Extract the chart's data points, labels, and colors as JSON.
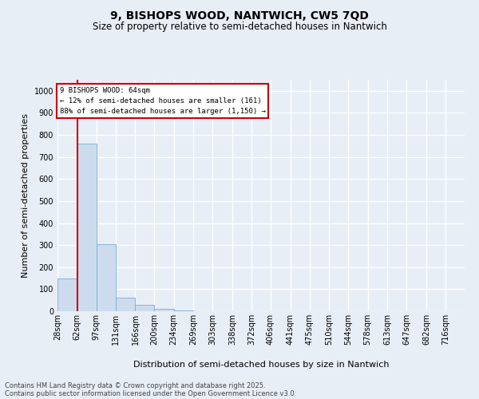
{
  "title_line1": "9, BISHOPS WOOD, NANTWICH, CW5 7QD",
  "title_line2": "Size of property relative to semi-detached houses in Nantwich",
  "xlabel": "Distribution of semi-detached houses by size in Nantwich",
  "ylabel": "Number of semi-detached properties",
  "bins": [
    "28sqm",
    "62sqm",
    "97sqm",
    "131sqm",
    "166sqm",
    "200sqm",
    "234sqm",
    "269sqm",
    "303sqm",
    "338sqm",
    "372sqm",
    "406sqm",
    "441sqm",
    "475sqm",
    "510sqm",
    "544sqm",
    "578sqm",
    "613sqm",
    "647sqm",
    "682sqm",
    "716sqm"
  ],
  "bin_edges": [
    28,
    62,
    97,
    131,
    166,
    200,
    234,
    269,
    303,
    338,
    372,
    406,
    441,
    475,
    510,
    544,
    578,
    613,
    647,
    682,
    716
  ],
  "values": [
    150,
    760,
    305,
    60,
    28,
    10,
    4,
    0,
    0,
    0,
    0,
    0,
    0,
    0,
    0,
    0,
    0,
    0,
    0,
    0
  ],
  "bar_color": "#ccdcee",
  "bar_edge_color": "#7aaed4",
  "vline_x": 64,
  "vline_color": "#cc0000",
  "ylim": [
    0,
    1050
  ],
  "yticks": [
    0,
    100,
    200,
    300,
    400,
    500,
    600,
    700,
    800,
    900,
    1000
  ],
  "annotation_line1": "9 BISHOPS WOOD: 64sqm",
  "annotation_line2": "← 12% of semi-detached houses are smaller (161)",
  "annotation_line3": "88% of semi-detached houses are larger (1,150) →",
  "annotation_box_color": "#cc0000",
  "footer_line1": "Contains HM Land Registry data © Crown copyright and database right 2025.",
  "footer_line2": "Contains public sector information licensed under the Open Government Licence v3.0.",
  "bg_color": "#e8eef5",
  "plot_bg_color": "#e8eef5",
  "grid_color": "#ffffff",
  "title_fontsize": 10,
  "subtitle_fontsize": 8.5,
  "label_fontsize": 8,
  "tick_fontsize": 7,
  "footer_fontsize": 6
}
